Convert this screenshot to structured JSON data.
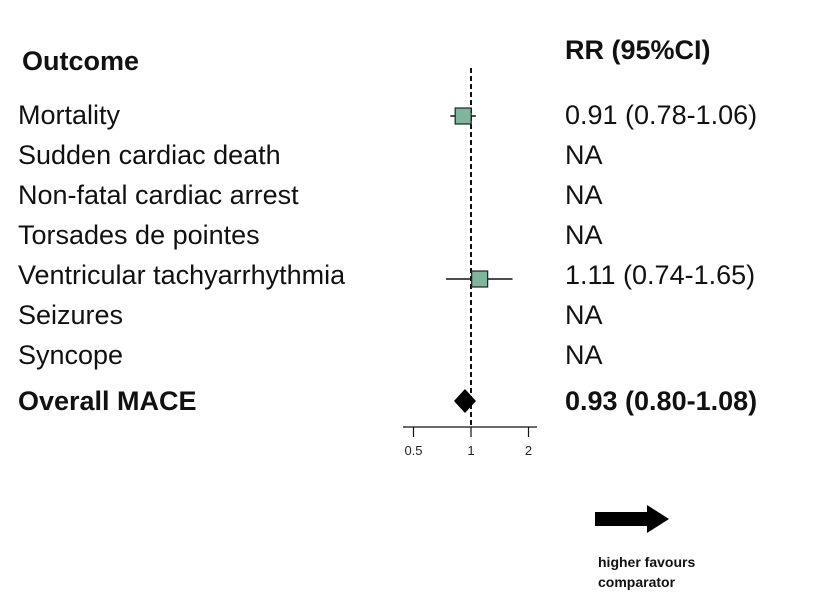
{
  "headers": {
    "outcome": "Outcome",
    "rr": "RR (95%CI)"
  },
  "chart_data": {
    "type": "forest",
    "x_scale": "log",
    "reference_line": 1,
    "xlim": [
      0.5,
      2
    ],
    "ticks": [
      {
        "value": 0.5,
        "label": "0.5"
      },
      {
        "value": 1,
        "label": "1"
      },
      {
        "value": 2,
        "label": "2"
      }
    ],
    "rows": [
      {
        "label": "Mortality",
        "rr_text": "0.91 (0.78-1.06)",
        "estimate": 0.91,
        "lower": 0.78,
        "upper": 1.06,
        "marker": "square",
        "bold": false
      },
      {
        "label": "Sudden cardiac death",
        "rr_text": "NA",
        "estimate": null,
        "lower": null,
        "upper": null,
        "marker": "none",
        "bold": false
      },
      {
        "label": "Non-fatal cardiac arrest",
        "rr_text": "NA",
        "estimate": null,
        "lower": null,
        "upper": null,
        "marker": "none",
        "bold": false
      },
      {
        "label": "Torsades de pointes",
        "rr_text": "NA",
        "estimate": null,
        "lower": null,
        "upper": null,
        "marker": "none",
        "bold": false
      },
      {
        "label": "Ventricular tachyarrhythmia",
        "rr_text": "1.11 (0.74-1.65)",
        "estimate": 1.11,
        "lower": 0.74,
        "upper": 1.65,
        "marker": "square",
        "bold": false
      },
      {
        "label": "Seizures",
        "rr_text": "NA",
        "estimate": null,
        "lower": null,
        "upper": null,
        "marker": "none",
        "bold": false
      },
      {
        "label": "Syncope",
        "rr_text": "NA",
        "estimate": null,
        "lower": null,
        "upper": null,
        "marker": "none",
        "bold": false
      },
      {
        "label": "Overall MACE",
        "rr_text": "0.93 (0.80-1.08)",
        "estimate": 0.93,
        "lower": 0.8,
        "upper": 1.08,
        "marker": "diamond",
        "bold": true
      }
    ],
    "marker_color": "#7fb59a",
    "arrow_direction": "right",
    "annotation": [
      "higher favours",
      "comparator"
    ]
  }
}
